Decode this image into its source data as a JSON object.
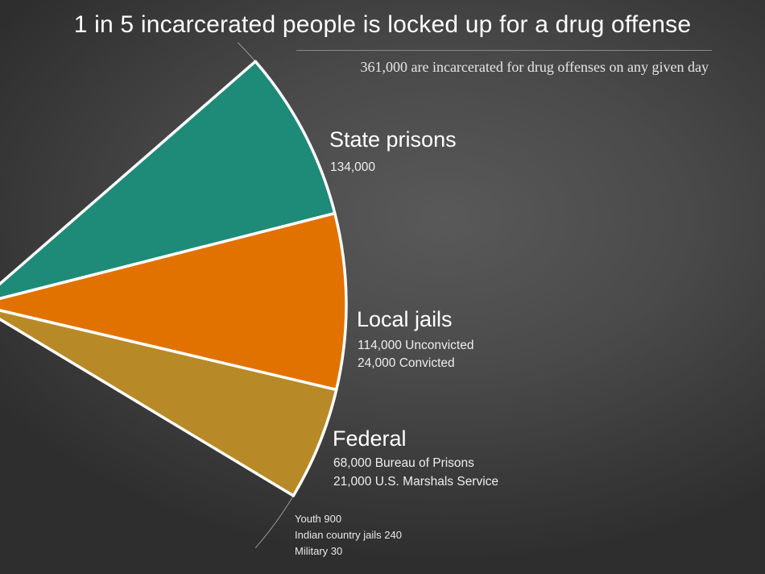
{
  "title": "1 in 5 incarcerated people is locked up for a drug offense",
  "subtitle": "361,000 are incarcerated for drug offenses on any given day",
  "colors": {
    "state": "#1e8b78",
    "local": "#e27200",
    "federal": "#b88a27",
    "separator": "#ffffff",
    "background": "#444444"
  },
  "chart_data": {
    "type": "pie",
    "title": "1 in 5 incarcerated people is locked up for a drug offense",
    "subtitle": "361,000 are incarcerated for drug offenses on any given day",
    "total": 361000,
    "segments": [
      {
        "label": "State prisons",
        "value": 134000,
        "details": [
          "134,000"
        ],
        "color": "#1e8b78"
      },
      {
        "label": "Local jails",
        "value": 138000,
        "details": [
          "114,000 Unconvicted",
          "24,000 Convicted"
        ],
        "components": [
          {
            "name": "Unconvicted",
            "value": 114000
          },
          {
            "name": "Convicted",
            "value": 24000
          }
        ],
        "color": "#e27200"
      },
      {
        "label": "Federal",
        "value": 89000,
        "details": [
          "68,000 Bureau of Prisons",
          "21,000 U.S. Marshals Service"
        ],
        "components": [
          {
            "name": "Bureau of Prisons",
            "value": 68000
          },
          {
            "name": "U.S. Marshals Service",
            "value": 21000
          }
        ],
        "color": "#b88a27"
      }
    ],
    "small_segments": [
      {
        "label": "Youth 900",
        "value": 900
      },
      {
        "label": "Indian country jails 240",
        "value": 240
      },
      {
        "label": "Military 30",
        "value": 30
      }
    ]
  }
}
